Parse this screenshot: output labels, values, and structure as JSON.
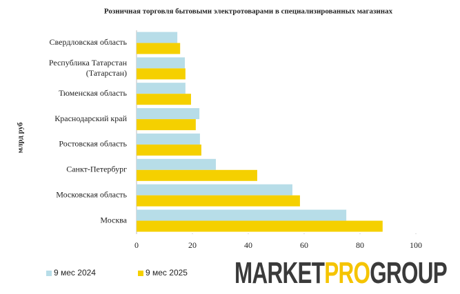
{
  "chart_data": {
    "type": "hbar",
    "title": "Розничная торговля бытовыми электротоварами в специализированных магазинах",
    "y_label": "млрд руб",
    "categories": [
      "Свердловская область",
      "Республика Татарстан\n(Татарстан)",
      "Тюменская область",
      "Краснодарский край",
      "Ростовская область",
      "Санкт-Петербург",
      "Московская область",
      "Москва"
    ],
    "series": [
      {
        "name": "9 мес 2024",
        "color": "#b7dde8",
        "values": [
          14.6,
          17.3,
          17.5,
          22.5,
          22.7,
          28.4,
          55.8,
          75.1
        ]
      },
      {
        "name": "9 мес 2025",
        "color": "#f5d000",
        "values": [
          15.6,
          17.5,
          19.5,
          21.2,
          23.2,
          43.2,
          58.5,
          88.1
        ]
      }
    ],
    "xlim": [
      0,
      100
    ],
    "xticks": [
      0,
      20,
      40,
      60,
      80,
      100
    ],
    "grid": false,
    "legend": "bottom-left",
    "logo": {
      "parts": [
        "MARKET",
        "PRO",
        "GROUP"
      ],
      "colors": [
        "#3a3a3a",
        "#f5c400",
        "#3a3a3a"
      ]
    }
  }
}
